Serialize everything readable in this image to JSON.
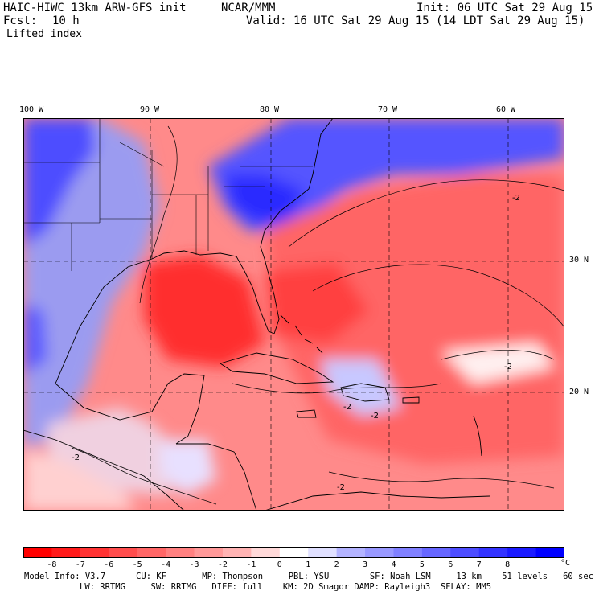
{
  "header": {
    "model": "HAIC-HIWC 13km ARW-GFS init",
    "org": "NCAR/MMM",
    "init": "Init: 06 UTC Sat 29 Aug 15",
    "fcst_label": "Fcst:",
    "fcst_value": "10 h",
    "valid": "Valid: 16 UTC Sat 29 Aug 15 (14 LDT Sat 29 Aug 15)",
    "field": "Lifted index"
  },
  "map": {
    "lon_labels": [
      "100 W",
      "90 W",
      "80 W",
      "70 W",
      "60 W"
    ],
    "lat_labels": [
      "30 N",
      "20 N"
    ],
    "contour_labels": [
      "-2",
      "-2",
      "-2",
      "-2",
      "-2",
      "-2"
    ]
  },
  "colorbar": {
    "ticks": [
      "-8",
      "-7",
      "-6",
      "-5",
      "-4",
      "-3",
      "-2",
      "-1",
      "0",
      "1",
      "2",
      "3",
      "4",
      "5",
      "6",
      "7",
      "8"
    ],
    "unit": "°C",
    "colors": [
      "#ff0000",
      "#ff1a1a",
      "#ff3333",
      "#ff4d4d",
      "#ff6666",
      "#ff8080",
      "#ff9999",
      "#ffb3b3",
      "#ffd9d9",
      "#ffffff",
      "#e0e0ff",
      "#b3b3ff",
      "#9999ff",
      "#8080ff",
      "#6666ff",
      "#4d4dff",
      "#3333ff",
      "#1a1aff",
      "#0000ff"
    ]
  },
  "info": {
    "line1": "Model Info: V3.7      CU: KF       MP: Thompson     PBL: YSU        SF: Noah LSM     13 km    51 levels   60 sec",
    "line2": "LW: RRTMG     SW: RRTMG   DIFF: full    KM: 2D Smagor DAMP: Rayleigh3  SFLAY: MM5"
  }
}
